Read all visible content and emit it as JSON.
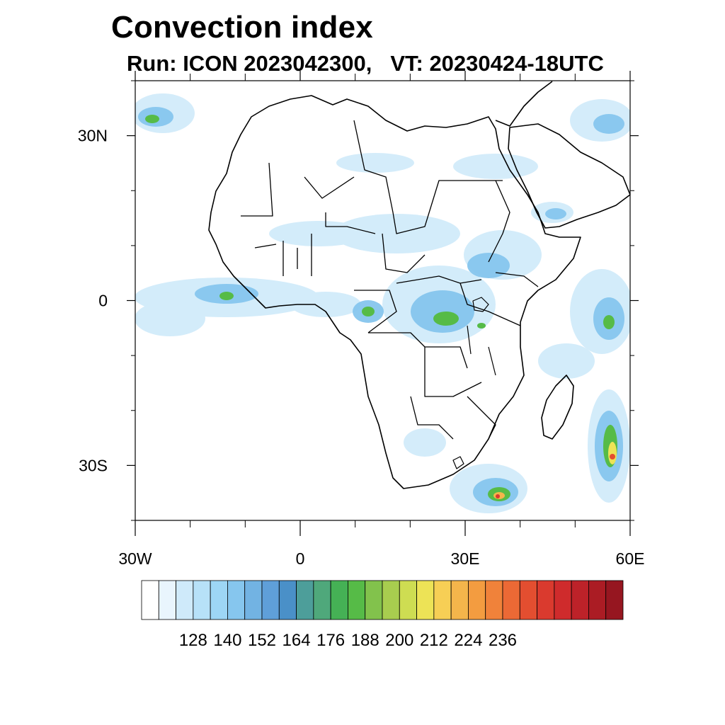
{
  "title": "Convection index",
  "subtitle": {
    "run": "Run: ICON 2023042300,",
    "vt": "VT: 20230424-18UTC"
  },
  "map": {
    "lon_range": [
      -30,
      60
    ],
    "lat_range": [
      -40,
      40
    ],
    "lat_ticks": [
      {
        "lat": 30,
        "label": "30N"
      },
      {
        "lat": 0,
        "label": "0"
      },
      {
        "lat": -30,
        "label": "30S"
      }
    ],
    "lon_ticks": [
      {
        "lon": -30,
        "label": "30W"
      },
      {
        "lon": 0,
        "label": "0"
      },
      {
        "lon": 30,
        "label": "30E"
      },
      {
        "lon": 60,
        "label": "60E"
      }
    ],
    "minor_lat": [
      -40,
      -20,
      -10,
      10,
      20,
      40
    ],
    "minor_lon": [
      -20,
      -10,
      10,
      20,
      40,
      50
    ],
    "colors": {
      "frame": "#000000",
      "coast": "#000000",
      "ocean": "#ffffff"
    }
  },
  "colorbar": {
    "colors": [
      "#ffffff",
      "#e9f5fd",
      "#cfeafa",
      "#b7e1f8",
      "#9dd6f5",
      "#86c6ee",
      "#72b3e3",
      "#5f9fd9",
      "#4a90c8",
      "#4d9e9a",
      "#4fa87b",
      "#45b155",
      "#56bb47",
      "#82c24c",
      "#a8cd4f",
      "#cedd52",
      "#ede356",
      "#f7cf55",
      "#f4b54b",
      "#f39c40",
      "#f0823a",
      "#ec6935",
      "#e34e30",
      "#da3a2e",
      "#cf2b2c",
      "#bd2229",
      "#ab1c24",
      "#961620"
    ],
    "labels": [
      "128",
      "140",
      "152",
      "164",
      "176",
      "188",
      "200",
      "212",
      "224",
      "236"
    ],
    "label_positions": [
      2,
      4,
      6,
      8,
      10,
      12,
      14,
      16,
      18,
      20
    ]
  }
}
